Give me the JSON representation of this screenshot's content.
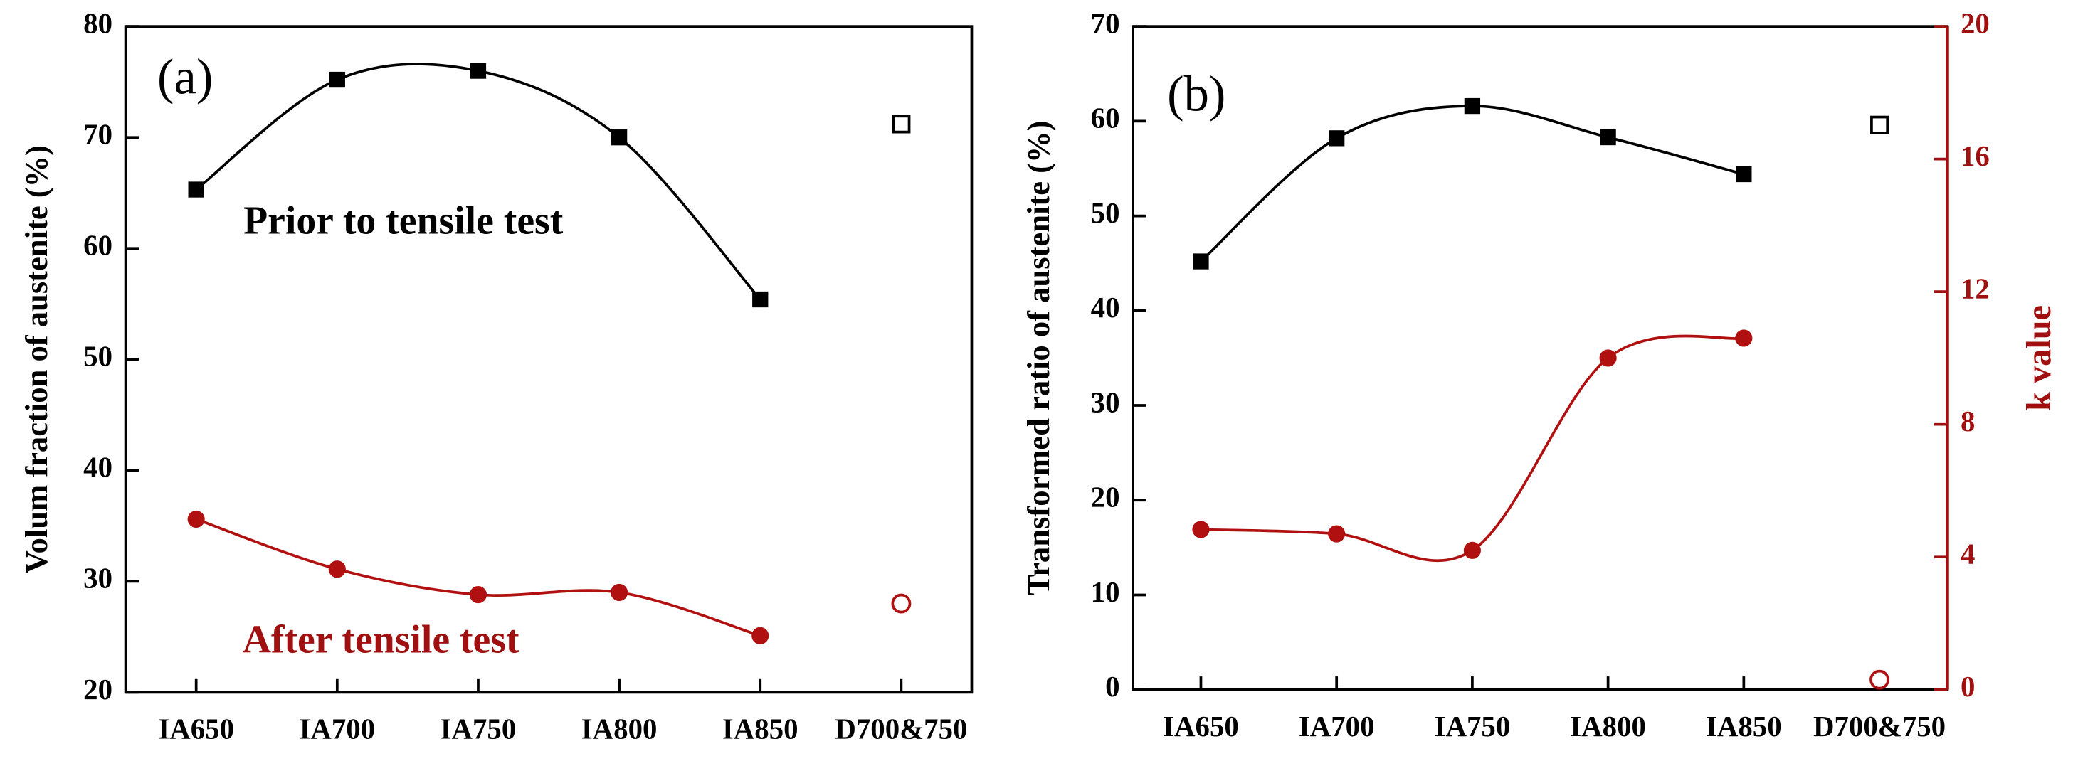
{
  "chart_data": [
    {
      "type": "line",
      "label": "(a)",
      "ylabel": "Volum fraction of austenite (%)",
      "categories": [
        "IA650",
        "IA700",
        "IA750",
        "IA800",
        "IA850",
        "D700&750"
      ],
      "ylim": [
        20,
        80
      ],
      "yticks": [
        20,
        30,
        40,
        50,
        60,
        70,
        80
      ],
      "series": [
        {
          "color": "#000000",
          "marker": "square",
          "line": true,
          "values": [
            65.3,
            75.2,
            76.0,
            70.0,
            55.4,
            null
          ]
        },
        {
          "color": "#000000",
          "marker": "open-square",
          "line": false,
          "values": [
            null,
            null,
            null,
            null,
            null,
            71.2
          ]
        },
        {
          "color": "#b01010",
          "marker": "circle",
          "line": true,
          "values": [
            35.6,
            31.1,
            28.8,
            29.0,
            25.1,
            null
          ]
        },
        {
          "color": "#b01010",
          "marker": "open-circle",
          "line": false,
          "values": [
            null,
            null,
            null,
            null,
            null,
            28.0
          ]
        }
      ],
      "annotations": [
        {
          "text": "Prior to tensile test",
          "color": "#000000"
        },
        {
          "text": "After tensile test",
          "color": "#a01010"
        }
      ]
    },
    {
      "type": "line",
      "label": "(b)",
      "ylabel": "Transformed ratio of austenite (%)",
      "y2label": "k value",
      "y2color": "#a01010",
      "categories": [
        "IA650",
        "IA700",
        "IA750",
        "IA800",
        "IA850",
        "D700&750"
      ],
      "ylim": [
        0,
        70
      ],
      "yticks": [
        0,
        10,
        20,
        30,
        40,
        50,
        60,
        70
      ],
      "y2lim": [
        0,
        20
      ],
      "y2ticks": [
        0,
        4,
        8,
        12,
        16,
        20
      ],
      "series": [
        {
          "color": "#000000",
          "marker": "square",
          "line": true,
          "values": [
            45.2,
            58.2,
            61.6,
            58.3,
            54.4,
            null
          ]
        },
        {
          "color": "#000000",
          "marker": "open-square",
          "line": false,
          "values": [
            null,
            null,
            null,
            null,
            null,
            59.6
          ]
        },
        {
          "color": "#b01010",
          "marker": "circle",
          "line": true,
          "axis": "y2",
          "values": [
            4.83,
            4.7,
            4.2,
            10.0,
            10.6,
            null
          ]
        },
        {
          "color": "#b01010",
          "marker": "open-circle",
          "line": false,
          "axis": "y2",
          "values": [
            null,
            null,
            null,
            null,
            null,
            0.3
          ]
        }
      ]
    }
  ]
}
